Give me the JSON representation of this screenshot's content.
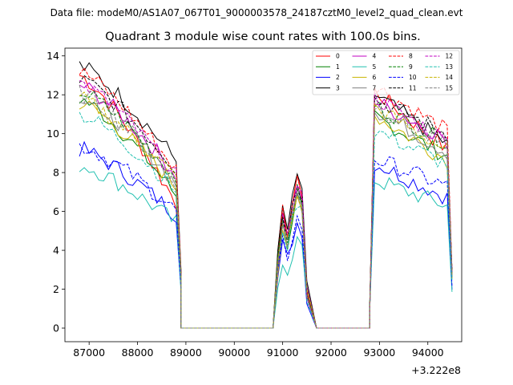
{
  "chart_data": {
    "type": "line",
    "suptitle": "Data file: modeM0/AS1A07_067T01_9000003578_24187cztM0_level2_quad_clean.evt",
    "title": "Quadrant 3 module wise count rates with 100.0s bins.",
    "xlabel": "",
    "ylabel": "",
    "x_offset_label": "+3.222e8",
    "xlim": [
      86500,
      94700
    ],
    "ylim": [
      -0.7,
      14.4
    ],
    "xticks": [
      87000,
      88000,
      89000,
      90000,
      91000,
      92000,
      93000,
      94000
    ],
    "xtick_labels": [
      "87000",
      "88000",
      "89000",
      "90000",
      "91000",
      "92000",
      "93000",
      "94000"
    ],
    "yticks": [
      0,
      2,
      4,
      6,
      8,
      10,
      12,
      14
    ],
    "ytick_labels": [
      "0",
      "2",
      "4",
      "6",
      "8",
      "10",
      "12",
      "14"
    ],
    "legend": {
      "position": "top-right",
      "columns": 4
    },
    "segments": [
      {
        "x0": 86800,
        "dx": 100,
        "count": 22,
        "tail_to_zero": 88900
      },
      {
        "x0": 90900,
        "dx": 100,
        "count": 7,
        "tail_to_zero": 91700
      },
      {
        "x0": 92800,
        "dx": 100,
        "count": 18
      }
    ],
    "zero_stretches": [
      [
        89000,
        90800
      ],
      [
        91800,
        92800
      ]
    ],
    "series": [
      {
        "name": "0",
        "color": "#ff0000",
        "dash": "solid",
        "levels": [
          13.0,
          10.2,
          6.0,
          12.4,
          9.0
        ]
      },
      {
        "name": "1",
        "color": "#008000",
        "dash": "solid",
        "levels": [
          11.8,
          9.0,
          6.5,
          11.0,
          8.7
        ]
      },
      {
        "name": "2",
        "color": "#0000ff",
        "dash": "solid",
        "levels": [
          9.2,
          7.3,
          5.6,
          8.6,
          6.6
        ]
      },
      {
        "name": "3",
        "color": "#000000",
        "dash": "solid",
        "levels": [
          13.5,
          10.5,
          8.3,
          12.2,
          9.3
        ]
      },
      {
        "name": "4",
        "color": "#c000c0",
        "dash": "solid",
        "levels": [
          12.5,
          9.8,
          7.6,
          11.8,
          9.6
        ]
      },
      {
        "name": "5",
        "color": "#20c0b0",
        "dash": "solid",
        "levels": [
          8.4,
          6.1,
          5.2,
          7.7,
          6.2
        ]
      },
      {
        "name": "6",
        "color": "#c8b400",
        "dash": "solid",
        "levels": [
          11.6,
          8.8,
          7.0,
          11.1,
          8.5
        ]
      },
      {
        "name": "7",
        "color": "#808080",
        "dash": "solid",
        "levels": [
          12.0,
          9.2,
          7.1,
          11.4,
          8.9
        ]
      },
      {
        "name": "8",
        "color": "#ff0000",
        "dash": "dashed",
        "levels": [
          13.2,
          10.3,
          7.8,
          12.6,
          10.0
        ]
      },
      {
        "name": "9",
        "color": "#008000",
        "dash": "dashed",
        "levels": [
          12.2,
          9.5,
          7.4,
          11.6,
          9.4
        ]
      },
      {
        "name": "10",
        "color": "#0000ff",
        "dash": "dashed",
        "levels": [
          9.4,
          7.6,
          5.8,
          8.8,
          7.2
        ]
      },
      {
        "name": "11",
        "color": "#000000",
        "dash": "dashed",
        "levels": [
          12.8,
          10.0,
          7.9,
          11.9,
          9.9
        ]
      },
      {
        "name": "12",
        "color": "#c000c0",
        "dash": "dashed",
        "levels": [
          12.6,
          9.7,
          7.5,
          12.0,
          9.5
        ]
      },
      {
        "name": "13",
        "color": "#20c0b0",
        "dash": "dashed",
        "levels": [
          11.0,
          8.8,
          6.8,
          10.3,
          8.3
        ]
      },
      {
        "name": "14",
        "color": "#c8b400",
        "dash": "dashed",
        "levels": [
          11.8,
          9.1,
          7.4,
          11.5,
          9.0
        ]
      },
      {
        "name": "15",
        "color": "#808080",
        "dash": "dashed",
        "levels": [
          12.1,
          9.4,
          7.2,
          11.6,
          9.1
        ]
      }
    ]
  }
}
